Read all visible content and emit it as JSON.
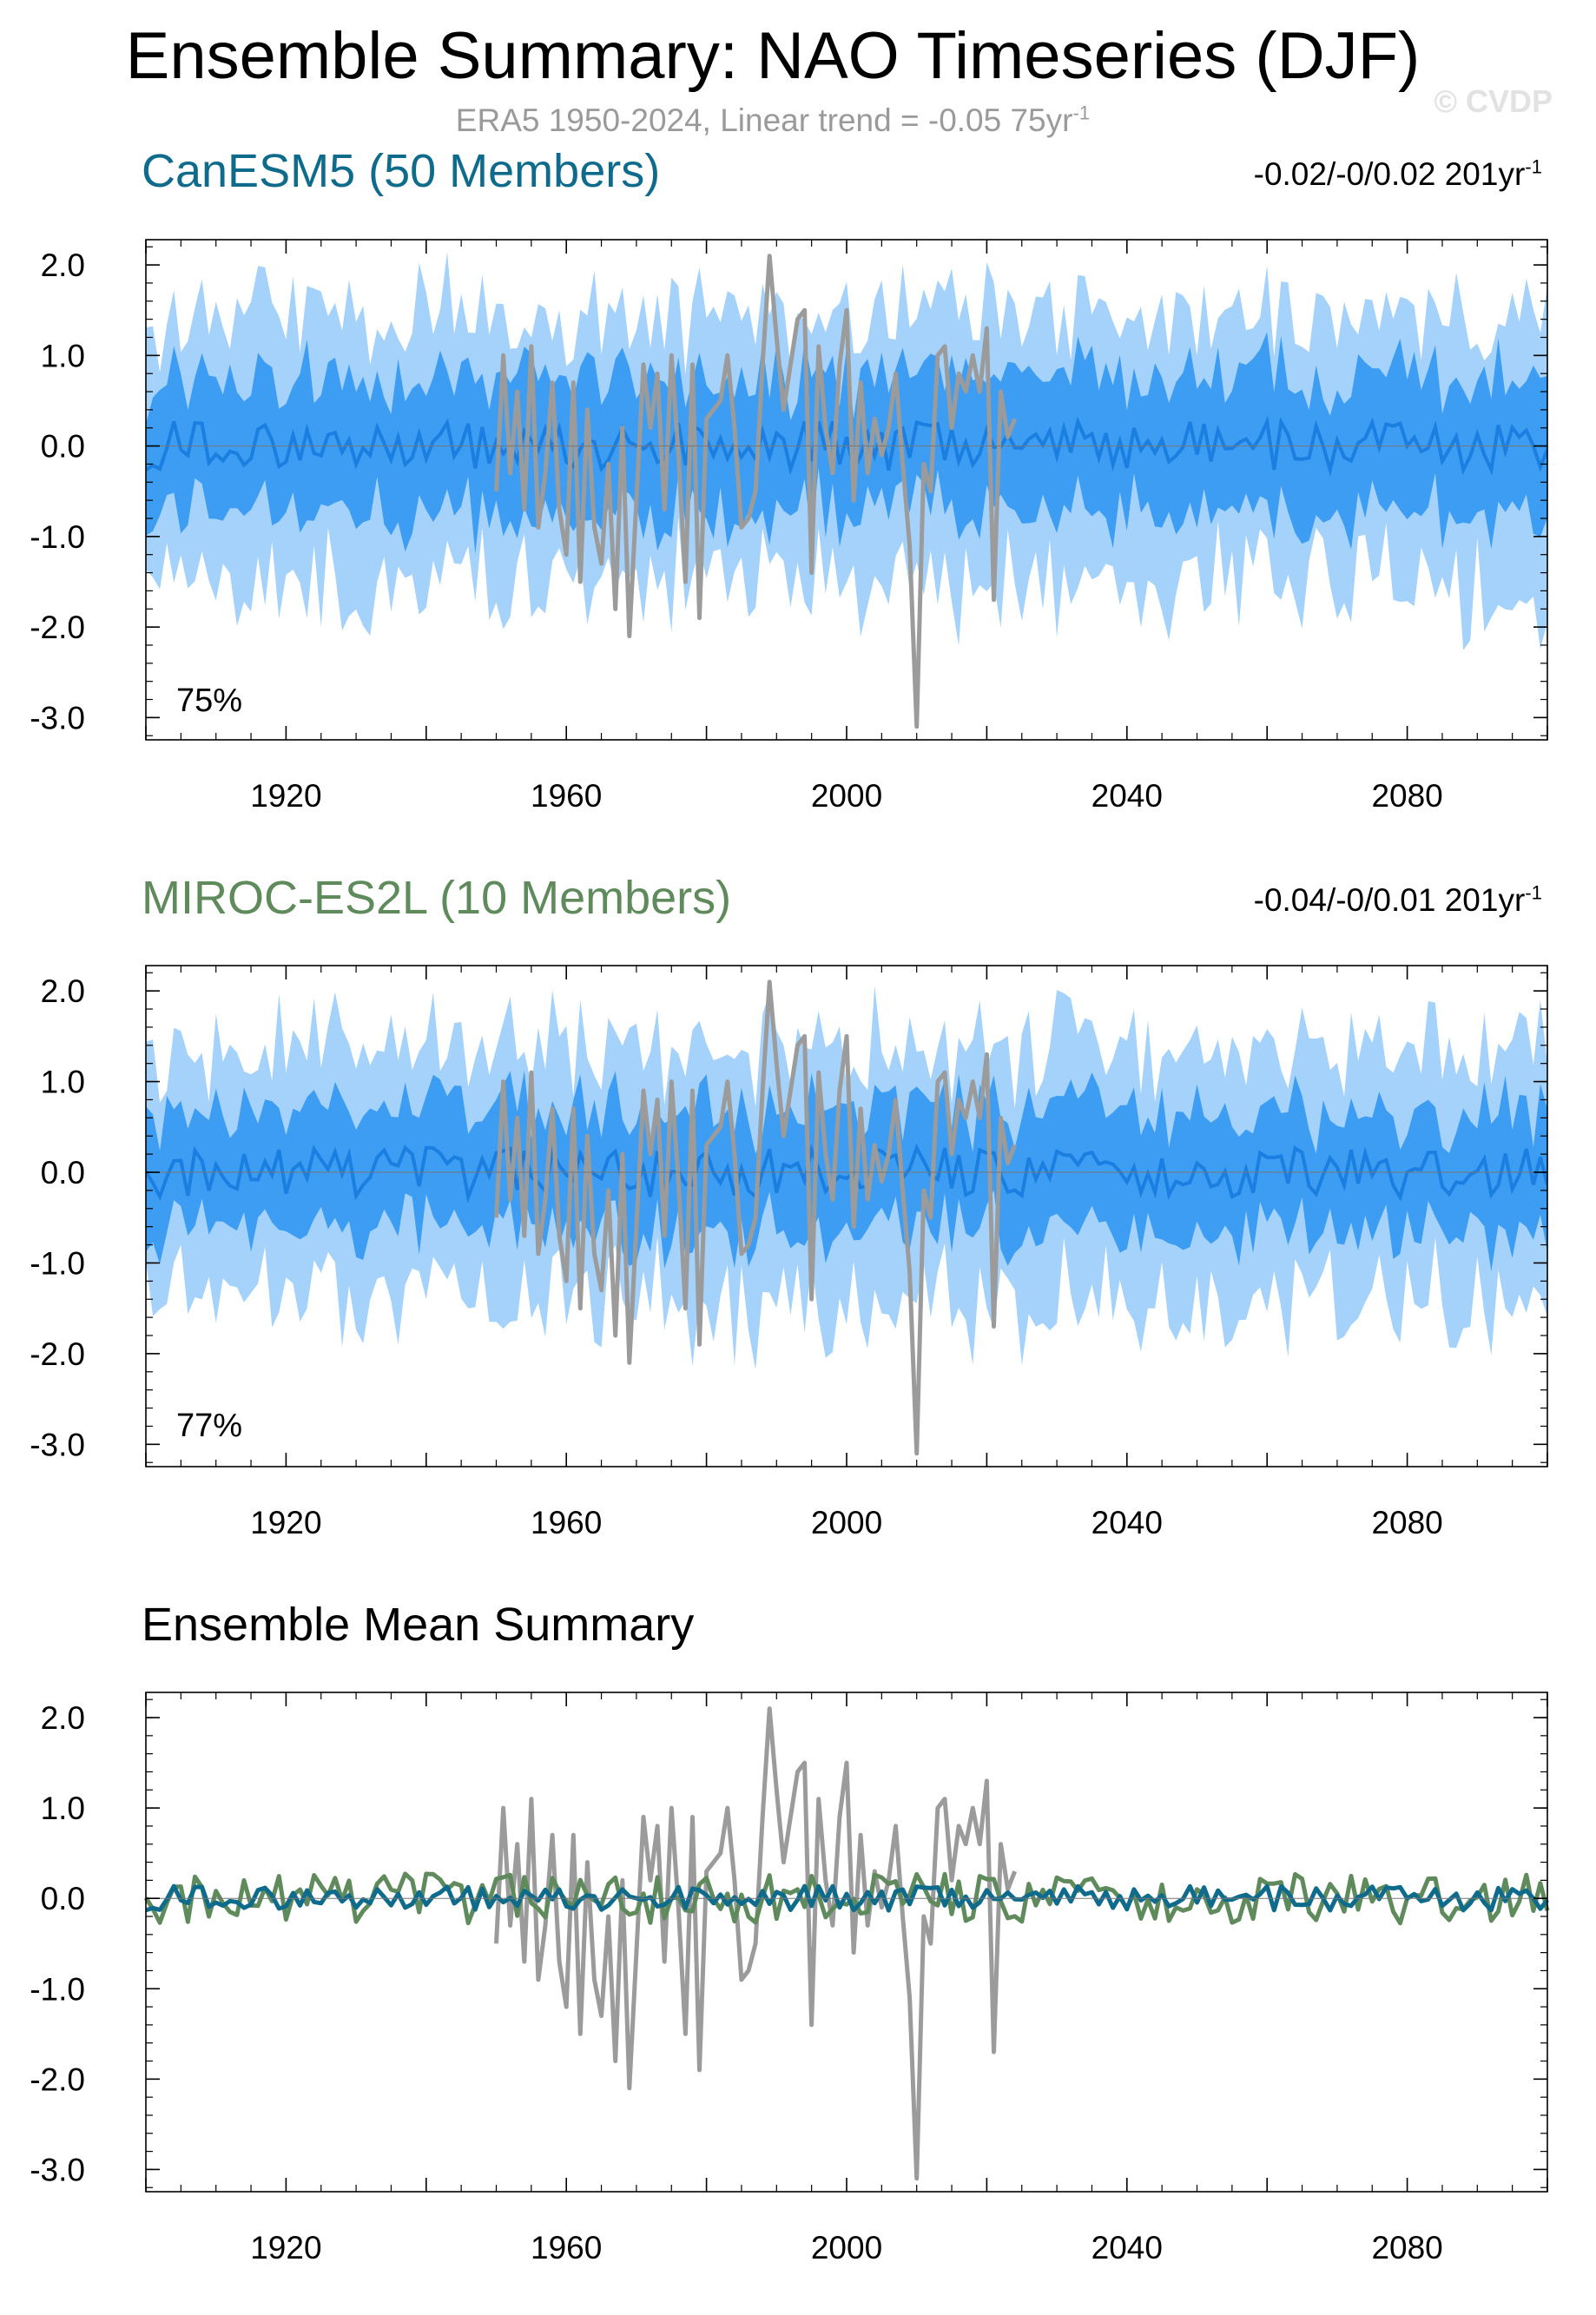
{
  "header": {
    "title": "Ensemble Summary: NAO Timeseries (DJF)",
    "subtitle_prefix": "ERA5 1950-2024, Linear trend = -0.05 75yr",
    "subtitle_sup": "-1",
    "watermark": "© CVDP"
  },
  "colors": {
    "canesm5": "#0f6b8c",
    "miroc": "#5f8a5c",
    "obs": "#9b9b9b",
    "spread_outer": "#a5d2fa",
    "spread_inner": "#3d9df2",
    "ens_mean_line": "#1a7fe0"
  },
  "panels": [
    {
      "title": "CanESM5 (50 Members)",
      "title_color": "#0f6b8c",
      "trend_prefix": "-0.02/-0/0.02 201yr",
      "trend_sup": "-1",
      "percent": "75%"
    },
    {
      "title": "MIROC-ES2L (10 Members)",
      "title_color": "#5f8a5c",
      "trend_prefix": "-0.04/-0/0.01 201yr",
      "trend_sup": "-1",
      "percent": "77%"
    },
    {
      "title": "Ensemble Mean Summary",
      "title_color": "#000000"
    }
  ],
  "chart_data": [
    {
      "type": "area",
      "title": "CanESM5 (50 Members)",
      "xlim": [
        1900,
        2100
      ],
      "ylim": [
        -3.0,
        2.0
      ],
      "xticks": [
        1920,
        1960,
        2000,
        2040,
        2080
      ],
      "yticks": [
        "2.0",
        "1.0",
        "0.0",
        "-1.0",
        "-2.0",
        "-3.0"
      ],
      "grid": false,
      "series": [
        {
          "role": "spread-outer",
          "years": "1900-2100",
          "upper_approx": 1.2,
          "lower_approx": -1.7
        },
        {
          "role": "spread-inner",
          "years": "1900-2100",
          "upper_approx": 0.8,
          "lower_approx": -0.6
        },
        {
          "role": "ensemble-mean",
          "years": "1900-2100",
          "approx": 0.0
        },
        {
          "role": "observations",
          "x": [
            1950,
            1951,
            1952,
            1953,
            1954,
            1955,
            1956,
            1957,
            1958,
            1959,
            1960,
            1961,
            1962,
            1963,
            1964,
            1965,
            1966,
            1967,
            1968,
            1969,
            1970,
            1971,
            1972,
            1973,
            1974,
            1975,
            1976,
            1977,
            1978,
            1979,
            1980,
            1981,
            1982,
            1983,
            1984,
            1985,
            1986,
            1987,
            1988,
            1989,
            1990,
            1991,
            1992,
            1993,
            1994,
            1995,
            1996,
            1997,
            1998,
            1999,
            2000,
            2001,
            2002,
            2003,
            2004,
            2005,
            2006,
            2007,
            2008,
            2009,
            2010,
            2011,
            2012,
            2013,
            2014,
            2015,
            2016,
            2017,
            2018,
            2019,
            2020,
            2021,
            2022,
            2023,
            2024
          ],
          "values": [
            -0.5,
            1.0,
            -0.3,
            0.6,
            -0.7,
            1.1,
            -0.9,
            -0.3,
            0.7,
            -0.7,
            -1.2,
            0.7,
            -1.5,
            0.4,
            -0.9,
            -1.3,
            -0.2,
            -1.8,
            0.2,
            -2.1,
            -0.6,
            0.9,
            0.2,
            0.8,
            -0.7,
            1.0,
            -0.1,
            -1.5,
            0.9,
            -1.9,
            0.3,
            0.4,
            0.5,
            1.0,
            0.2,
            -0.9,
            -0.8,
            -0.5,
            0.9,
            2.1,
            1.2,
            0.4,
            0.9,
            1.4,
            1.5,
            -1.4,
            1.1,
            0.2,
            -0.3,
            0.9,
            1.5,
            -0.6,
            0.7,
            -0.3,
            0.3,
            -0.1,
            0.2,
            0.8,
            -0.2,
            -1.1,
            -3.1,
            -0.2,
            -0.5,
            1.0,
            1.1,
            0.2,
            0.8,
            0.6,
            1.0,
            0.6,
            1.3,
            -1.7,
            0.6,
            0.1,
            0.3
          ]
        }
      ]
    },
    {
      "type": "area",
      "title": "MIROC-ES2L (10 Members)",
      "xlim": [
        1900,
        2100
      ],
      "ylim": [
        -3.0,
        2.0
      ],
      "xticks": [
        1920,
        1960,
        2000,
        2040,
        2080
      ],
      "yticks": [
        "2.0",
        "1.0",
        "0.0",
        "-1.0",
        "-2.0",
        "-3.0"
      ],
      "grid": false,
      "series": [
        {
          "role": "spread-outer",
          "years": "1900-2100",
          "upper_approx": 1.0,
          "lower_approx": -1.6
        },
        {
          "role": "spread-inner",
          "years": "1900-2100",
          "upper_approx": 0.6,
          "lower_approx": -0.7
        },
        {
          "role": "ensemble-mean",
          "years": "1900-2100",
          "approx": 0.0
        },
        {
          "role": "observations",
          "same_as": "panel-1"
        }
      ]
    },
    {
      "type": "line",
      "title": "Ensemble Mean Summary",
      "xlim": [
        1900,
        2100
      ],
      "ylim": [
        -3.0,
        2.0
      ],
      "xticks": [
        1920,
        1960,
        2000,
        2040,
        2080
      ],
      "yticks": [
        "2.0",
        "1.0",
        "0.0",
        "-1.0",
        "-2.0",
        "-3.0"
      ],
      "grid": false,
      "series": [
        {
          "role": "observations",
          "same_as": "panel-1"
        },
        {
          "role": "canesm5-ensemble-mean",
          "years": "1900-2100",
          "approx": 0.0
        },
        {
          "role": "miroc-ensemble-mean",
          "years": "1900-2100",
          "approx": 0.0
        }
      ]
    }
  ]
}
